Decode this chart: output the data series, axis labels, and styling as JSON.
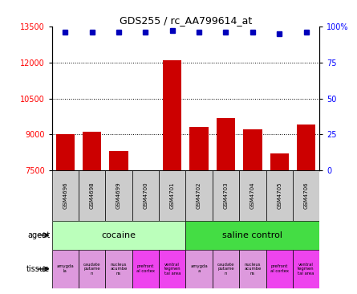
{
  "title": "GDS255 / rc_AA799614_at",
  "samples": [
    "GSM4696",
    "GSM4698",
    "GSM4699",
    "GSM4700",
    "GSM4701",
    "GSM4702",
    "GSM4703",
    "GSM4704",
    "GSM4705",
    "GSM4706"
  ],
  "counts": [
    9000,
    9100,
    8300,
    7500,
    12100,
    9300,
    9700,
    9200,
    8200,
    9400
  ],
  "percentiles": [
    96,
    96,
    96,
    96,
    97,
    96,
    96,
    96,
    95,
    96
  ],
  "ylim_left": [
    7500,
    13500
  ],
  "ylim_right": [
    0,
    100
  ],
  "yticks_left": [
    7500,
    9000,
    10500,
    12000,
    13500
  ],
  "yticks_right": [
    0,
    25,
    50,
    75,
    100
  ],
  "bar_color": "#cc0000",
  "dot_color": "#0000bb",
  "baseline": 7500,
  "tissue_labels": [
    "amygda\nla",
    "caudate\nputame\nn",
    "nucleus\nacumbe\nns",
    "prefront\nal cortex",
    "ventral\ntegmen\ntal area",
    "amygda\na",
    "caudate\nputame\nn",
    "nucleus\nacumbe\nns",
    "prefront\nal cortex",
    "ventral\ntegmen\ntal area"
  ],
  "tissue_colors": [
    "#dd99dd",
    "#dd99dd",
    "#dd99dd",
    "#ee44ee",
    "#ee44ee",
    "#dd99dd",
    "#dd99dd",
    "#dd99dd",
    "#ee44ee",
    "#ee44ee"
  ],
  "agent_cocaine_color": "#bbffbb",
  "agent_saline_color": "#44dd44",
  "sample_box_color": "#cccccc",
  "dot_size": 5,
  "legend_count_color": "#cc0000",
  "legend_pct_color": "#0000bb"
}
